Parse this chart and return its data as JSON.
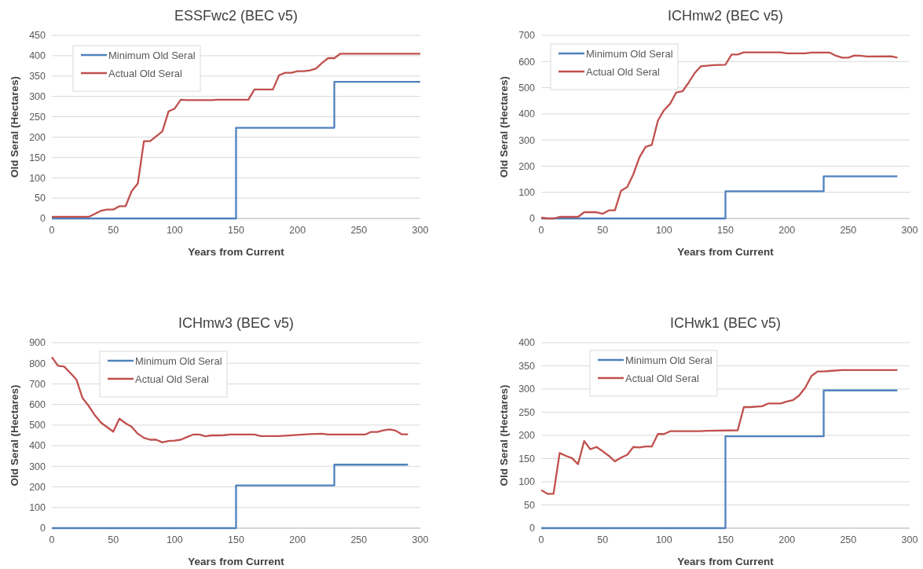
{
  "chart_data": [
    {
      "type": "line",
      "title": "ESSFwc2 (BEC v5)",
      "xlabel": "Years from Current",
      "ylabel": "Old Seral (Hectares)",
      "xlim": [
        0,
        300
      ],
      "xticks": [
        0,
        50,
        100,
        150,
        200,
        250,
        300
      ],
      "ylim": [
        0,
        450
      ],
      "yticks": [
        0,
        50,
        100,
        150,
        200,
        250,
        300,
        350,
        400,
        450
      ],
      "grid": "y",
      "legend": "top left",
      "series": [
        {
          "name": "Minimum Old Seral",
          "color": "#4f81bd",
          "type": "step",
          "x": [
            0,
            150,
            230,
            300
          ],
          "values": [
            0,
            223,
            336,
            336
          ]
        },
        {
          "name": "Actual Old Seral",
          "color": "#c0504d",
          "type": "line",
          "x": [
            0,
            30,
            40,
            45,
            50,
            55,
            60,
            65,
            70,
            75,
            80,
            85,
            90,
            95,
            100,
            105,
            110,
            130,
            135,
            160,
            165,
            180,
            185,
            190,
            195,
            200,
            205,
            210,
            215,
            220,
            225,
            230,
            235,
            300
          ],
          "values": [
            4,
            4,
            19,
            22,
            22,
            30,
            30,
            67,
            86,
            190,
            190,
            202,
            214,
            263,
            270,
            292,
            291,
            291,
            292,
            292,
            317,
            317,
            352,
            358,
            358,
            362,
            362,
            364,
            368,
            382,
            394,
            394,
            405,
            405
          ]
        }
      ]
    },
    {
      "type": "line",
      "title": "ICHmw2 (BEC v5)",
      "xlabel": "Years from Current",
      "ylabel": "Old Seral (Hectares)",
      "xlim": [
        0,
        300
      ],
      "xticks": [
        0,
        50,
        100,
        150,
        200,
        250,
        300
      ],
      "ylim": [
        0,
        700
      ],
      "yticks": [
        0,
        100,
        200,
        300,
        400,
        500,
        600,
        700
      ],
      "grid": "y",
      "legend": "top left",
      "series": [
        {
          "name": "Minimum Old Seral",
          "color": "#4f81bd",
          "type": "step",
          "x": [
            0,
            150,
            230,
            290
          ],
          "values": [
            0,
            104,
            161,
            161
          ]
        },
        {
          "name": "Actual Old Seral",
          "color": "#c0504d",
          "type": "line",
          "x": [
            0,
            5,
            10,
            15,
            30,
            35,
            45,
            50,
            55,
            60,
            65,
            70,
            75,
            80,
            85,
            90,
            95,
            100,
            105,
            110,
            115,
            120,
            125,
            130,
            135,
            140,
            150,
            155,
            160,
            165,
            195,
            200,
            215,
            220,
            235,
            240,
            245,
            250,
            255,
            260,
            265,
            285,
            290
          ],
          "values": [
            3,
            0,
            0,
            6,
            6,
            24,
            24,
            18,
            31,
            31,
            106,
            120,
            169,
            234,
            274,
            281,
            374,
            414,
            439,
            482,
            486,
            519,
            556,
            582,
            584,
            586,
            588,
            627,
            627,
            635,
            635,
            631,
            631,
            634,
            634,
            622,
            615,
            615,
            623,
            622,
            619,
            620,
            615
          ]
        }
      ]
    },
    {
      "type": "line",
      "title": "ICHmw3 (BEC v5)",
      "xlabel": "Years from Current",
      "ylabel": "Old Seral (Hectares)",
      "xlim": [
        0,
        300
      ],
      "xticks": [
        0,
        50,
        100,
        150,
        200,
        250,
        300
      ],
      "ylim": [
        0,
        900
      ],
      "yticks": [
        0,
        100,
        200,
        300,
        400,
        500,
        600,
        700,
        800,
        900
      ],
      "grid": "y",
      "legend": "top left",
      "series": [
        {
          "name": "Minimum Old Seral",
          "color": "#4f81bd",
          "type": "step",
          "x": [
            0,
            150,
            230,
            290
          ],
          "values": [
            0,
            207,
            308,
            308
          ]
        },
        {
          "name": "Actual Old Seral",
          "color": "#c0504d",
          "type": "line",
          "x": [
            0,
            5,
            10,
            15,
            20,
            25,
            30,
            35,
            40,
            45,
            50,
            55,
            60,
            65,
            70,
            75,
            80,
            85,
            90,
            95,
            100,
            105,
            110,
            115,
            120,
            125,
            130,
            135,
            140,
            145,
            165,
            170,
            185,
            200,
            210,
            220,
            225,
            255,
            260,
            265,
            270,
            275,
            280,
            285,
            290
          ],
          "values": [
            830,
            788,
            784,
            753,
            721,
            631,
            593,
            548,
            512,
            490,
            468,
            531,
            509,
            492,
            458,
            438,
            429,
            429,
            416,
            423,
            425,
            429,
            442,
            454,
            454,
            446,
            450,
            450,
            451,
            454,
            454,
            447,
            447,
            452,
            456,
            458,
            454,
            454,
            467,
            467,
            474,
            479,
            473,
            455,
            455
          ]
        }
      ]
    },
    {
      "type": "line",
      "title": "ICHwk1 (BEC v5)",
      "xlabel": "Years from Current",
      "ylabel": "Old Seral (Hectares)",
      "xlim": [
        0,
        300
      ],
      "xticks": [
        0,
        50,
        100,
        150,
        200,
        250,
        300
      ],
      "ylim": [
        0,
        400
      ],
      "yticks": [
        0,
        50,
        100,
        150,
        200,
        250,
        300,
        350,
        400
      ],
      "grid": "y",
      "legend": "top left",
      "series": [
        {
          "name": "Minimum Old Seral",
          "color": "#4f81bd",
          "type": "step",
          "x": [
            0,
            150,
            230,
            290
          ],
          "values": [
            0,
            198,
            297,
            297
          ]
        },
        {
          "name": "Actual Old Seral",
          "color": "#c0504d",
          "type": "line",
          "x": [
            0,
            5,
            10,
            15,
            20,
            25,
            30,
            35,
            40,
            45,
            50,
            55,
            60,
            65,
            70,
            75,
            80,
            85,
            90,
            95,
            100,
            105,
            130,
            135,
            160,
            165,
            170,
            180,
            185,
            195,
            200,
            205,
            210,
            215,
            220,
            225,
            230,
            235,
            245,
            290
          ],
          "values": [
            82,
            74,
            74,
            162,
            156,
            151,
            138,
            188,
            170,
            175,
            166,
            156,
            144,
            152,
            158,
            175,
            174,
            176,
            176,
            203,
            203,
            209,
            209,
            210,
            211,
            261,
            261,
            263,
            269,
            269,
            273,
            276,
            286,
            303,
            328,
            338,
            338,
            339,
            341,
            341
          ]
        }
      ]
    }
  ]
}
